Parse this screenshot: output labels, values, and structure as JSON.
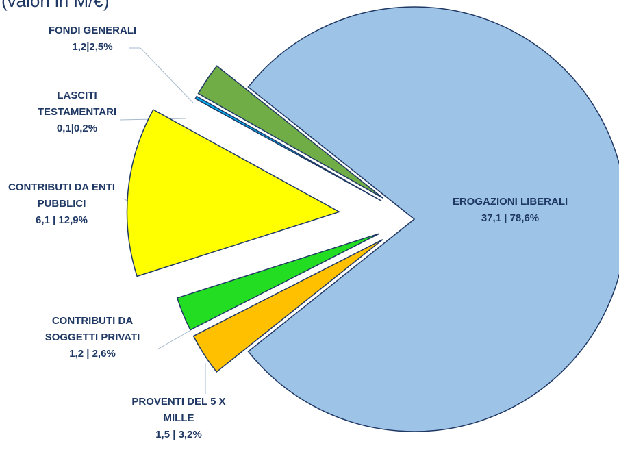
{
  "chart_data": {
    "type": "pie",
    "title": "(valori in M/€)",
    "categories": [
      "EROGAZIONI LIBERALI",
      "PROVENTI DEL 5 X MILLE",
      "CONTRIBUTI DA SOGGETTI PRIVATI",
      "CONTRIBUTI DA ENTI PUBBLICI",
      "LASCITI TESTAMENTARI",
      "FONDI GENERALI"
    ],
    "values": [
      78.6,
      3.2,
      2.6,
      12.9,
      0.2,
      2.5
    ],
    "value_labels": [
      "37,1 | 78,6%",
      "1,5 | 3,2%",
      "1,2 | 2,6%",
      "6,1 | 12,9%",
      "0,1|0,2%",
      "1,2|2,5%"
    ],
    "colors": [
      "#9dc3e6",
      "#ffc000",
      "#22dd22",
      "#ffff00",
      "#00b0f0",
      "#70ad47"
    ]
  }
}
